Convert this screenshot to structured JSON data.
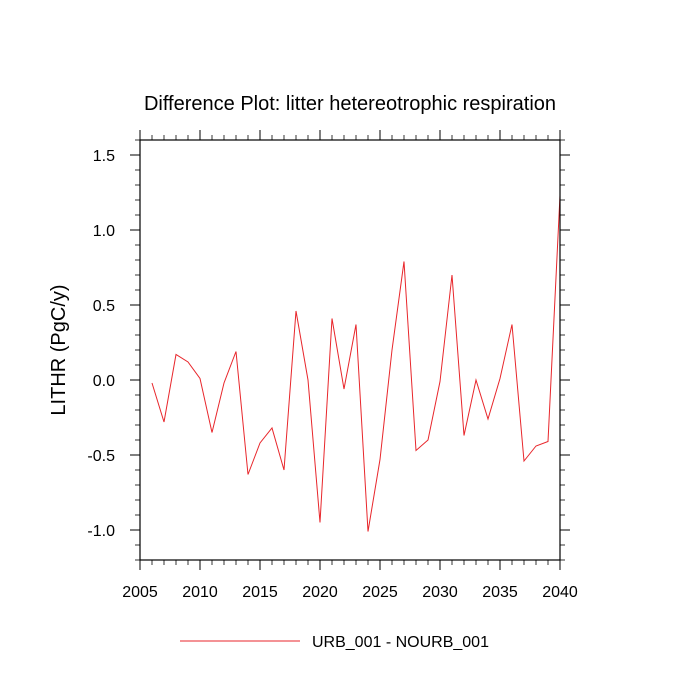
{
  "chart_data": {
    "type": "line",
    "title": "Difference Plot: litter hetereotrophic respiration",
    "xlabel": "",
    "ylabel": "LITHR  (PgC/y)",
    "xlim": [
      2005,
      2040
    ],
    "ylim": [
      -1.2,
      1.6
    ],
    "xticks": [
      2005,
      2010,
      2015,
      2020,
      2025,
      2030,
      2035,
      2040
    ],
    "xtick_labels": [
      "2005",
      "2010",
      "2015",
      "2020",
      "2025",
      "2030",
      "2035",
      "2040"
    ],
    "yticks": [
      -1.0,
      -0.5,
      0.0,
      0.5,
      1.0,
      1.5
    ],
    "ytick_labels": [
      "-1.0",
      "-0.5",
      "0.0",
      "0.5",
      "1.0",
      "1.5"
    ],
    "series": [
      {
        "name": "URB_001 - NOURB_001",
        "color": "#e8262b",
        "x": [
          2006,
          2007,
          2008,
          2009,
          2010,
          2011,
          2012,
          2013,
          2014,
          2015,
          2016,
          2017,
          2018,
          2019,
          2020,
          2021,
          2022,
          2023,
          2024,
          2025,
          2026,
          2027,
          2028,
          2029,
          2030,
          2031,
          2032,
          2033,
          2034,
          2035,
          2036,
          2037,
          2038,
          2039,
          2040
        ],
        "values": [
          -0.02,
          -0.28,
          0.17,
          0.12,
          0.01,
          -0.35,
          -0.02,
          0.19,
          -0.63,
          -0.42,
          -0.32,
          -0.6,
          0.46,
          0.0,
          -0.95,
          0.41,
          -0.06,
          0.37,
          -1.01,
          -0.53,
          0.2,
          0.79,
          -0.47,
          -0.4,
          -0.01,
          0.7,
          -0.37,
          0.0,
          -0.26,
          0.01,
          0.37,
          -0.54,
          -0.44,
          -0.41,
          1.23
        ]
      }
    ],
    "legend": {
      "position": "bottom-center"
    }
  }
}
